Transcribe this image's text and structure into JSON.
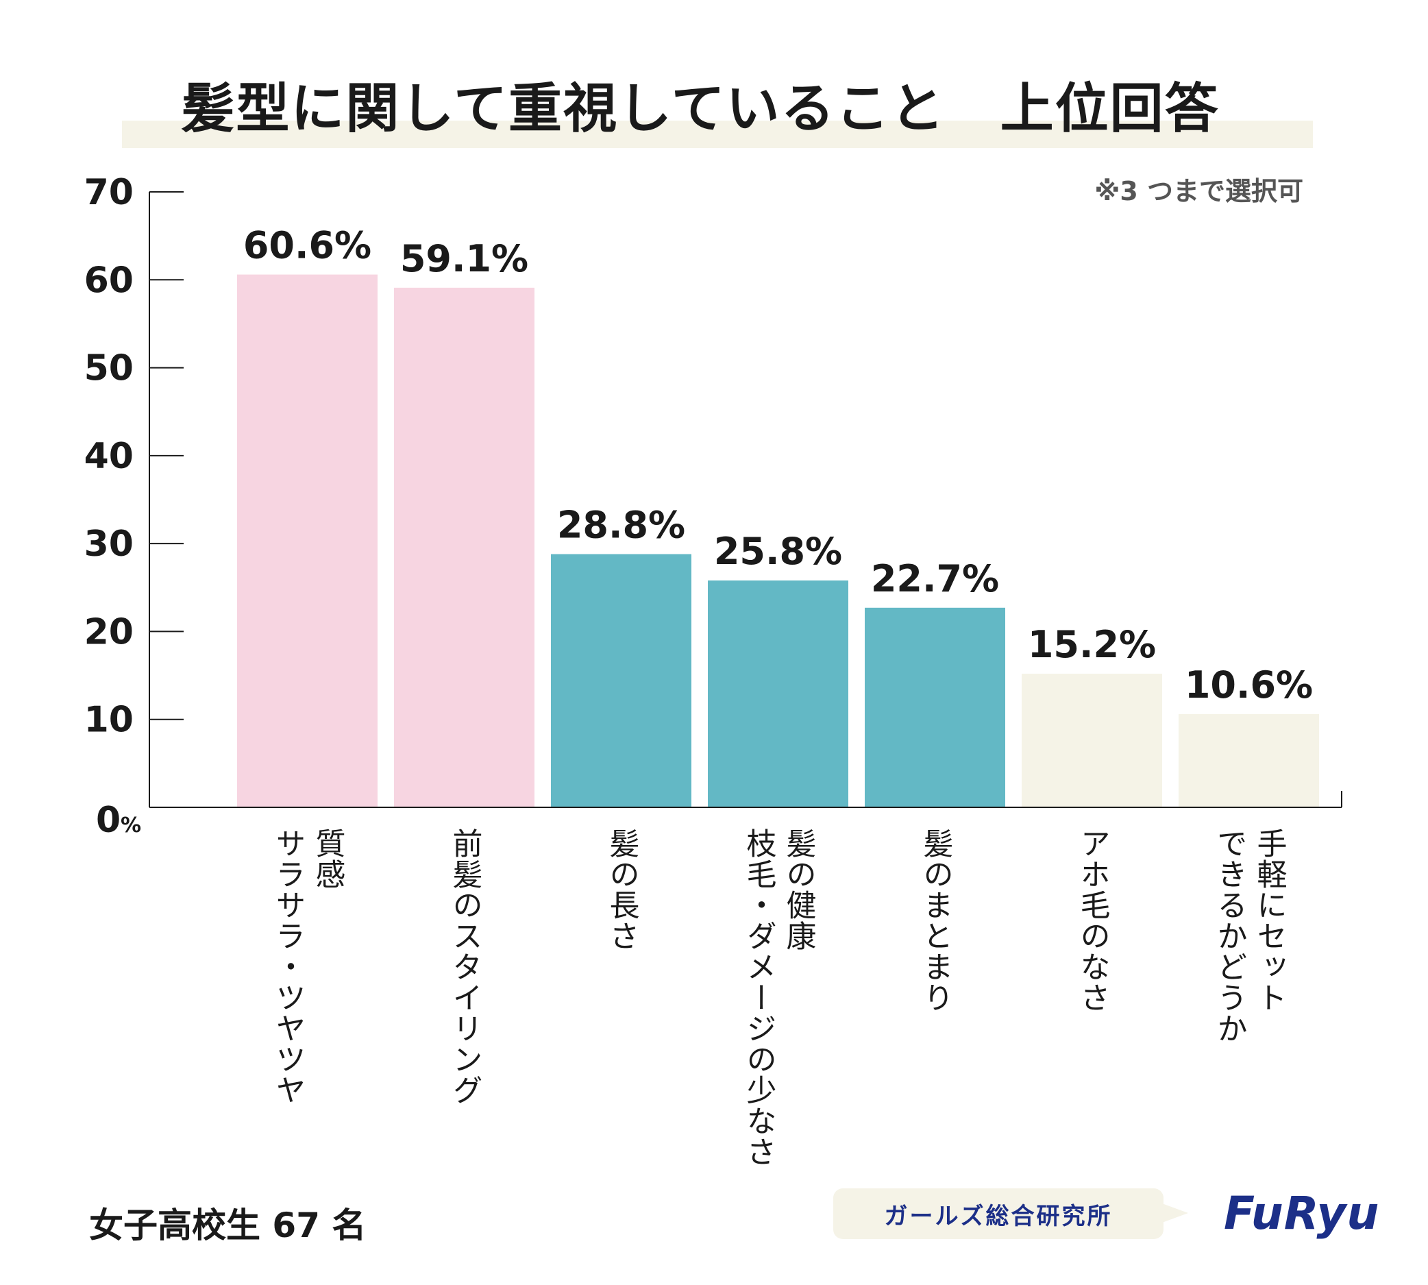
{
  "title": "髪型に関して重視していること　上位回答",
  "note": "※3 つまで選択可",
  "sample": "女子高校生 67 名",
  "source_label": "ガールズ総合研究所",
  "logo": "FuRyu",
  "chart_data": {
    "type": "bar",
    "title": "髪型に関して重視していること　上位回答",
    "xlabel": "",
    "ylabel": "",
    "y_unit": "%",
    "ylim": [
      0,
      70
    ],
    "y_ticks": [
      0,
      10,
      20,
      30,
      40,
      50,
      60,
      70
    ],
    "grid": false,
    "categories": [
      "質感 サラサラ・ツヤツヤ",
      "前髪のスタイリング",
      "髪の長さ",
      "髪の健康 枝毛・ダメージの少なさ",
      "髪のまとまり",
      "アホ毛のなさ",
      "手軽にセットできるかどうか"
    ],
    "category_lines": [
      [
        "質感",
        "サラサラ・ツヤツヤ"
      ],
      [
        "前髪のスタイリング"
      ],
      [
        "髪の長さ"
      ],
      [
        "髪の健康",
        "枝毛・ダメージの少なさ"
      ],
      [
        "髪のまとまり"
      ],
      [
        "アホ毛のなさ"
      ],
      [
        "手軽にセット",
        "できるかどうか"
      ]
    ],
    "values": [
      60.6,
      59.1,
      28.8,
      25.8,
      22.7,
      15.2,
      10.6
    ],
    "value_labels": [
      "60.6%",
      "59.1%",
      "28.8%",
      "25.8%",
      "22.7%",
      "15.2%",
      "10.6%"
    ],
    "bar_colors": [
      "#f7d5e1",
      "#f7d5e1",
      "#63b8c5",
      "#63b8c5",
      "#63b8c5",
      "#f5f3e7",
      "#f5f3e7"
    ]
  }
}
